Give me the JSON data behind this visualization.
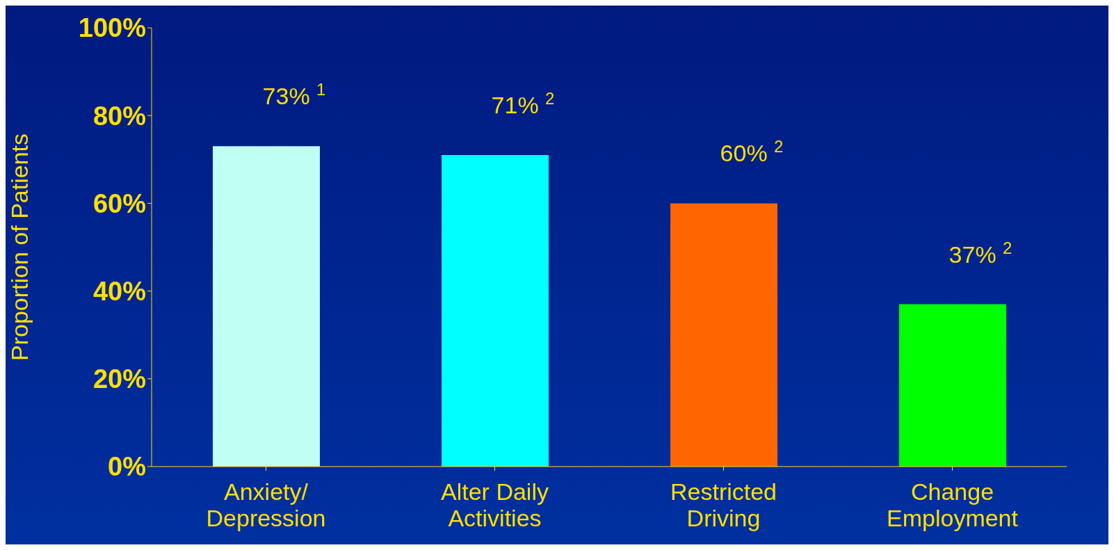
{
  "chart_data": {
    "type": "bar",
    "ylabel": "Proportion of Patients",
    "categories": [
      "Anxiety/\nDepression",
      "Alter Daily\nActivities",
      "Restricted\nDriving",
      "Change\nEmployment"
    ],
    "values": [
      73,
      71,
      60,
      37
    ],
    "colors": [
      "#c0fff4",
      "#00ffff",
      "#ff6600",
      "#00ff00"
    ],
    "value_labels": [
      "73% $^{1}$",
      "71% $^{2}$",
      "60% $^{2}$",
      "37% $^{2}$"
    ],
    "ylim": [
      0,
      100
    ],
    "yticks": [
      {
        "value": 0,
        "label": "0%"
      },
      {
        "value": 20,
        "label": "20%"
      },
      {
        "value": 40,
        "label": "40%"
      },
      {
        "value": 60,
        "label": "60%"
      },
      {
        "value": 80,
        "label": "80%"
      },
      {
        "value": 100,
        "label": "100%"
      }
    ],
    "grid": false
  }
}
